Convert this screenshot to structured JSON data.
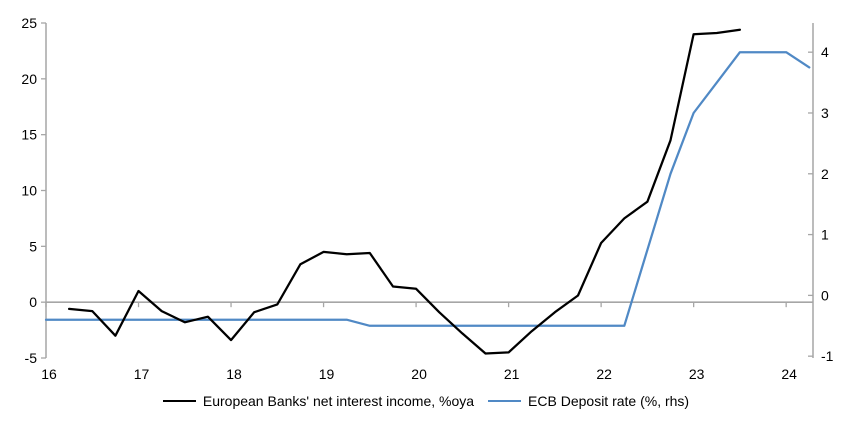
{
  "legend": {
    "items": [
      {
        "label": "European Banks' net interest income, %oya",
        "series": "nii"
      },
      {
        "label": "ECB Deposit rate (%, rhs)",
        "series": "ecb"
      }
    ]
  },
  "colors": {
    "nii": "#000000",
    "ecb": "#5089c5",
    "axis": "#a6a6a6",
    "zero_line": "#a6a6a6",
    "tick_text": "#000000"
  },
  "chart_data": {
    "type": "line",
    "title": "",
    "grid": "zero-line-only",
    "legend_position": "bottom",
    "x_axis": {
      "label": "",
      "ticks": [
        16,
        17,
        18,
        19,
        20,
        21,
        22,
        23,
        24
      ],
      "range": [
        16,
        24.29
      ],
      "tick_style": "on-zero-gridline"
    },
    "left_axis": {
      "label": "",
      "ticks": [
        25,
        20,
        15,
        10,
        5,
        0,
        -5
      ],
      "range": [
        -5,
        25
      ]
    },
    "right_axis": {
      "label": "",
      "ticks": [
        4,
        3,
        2,
        1,
        0,
        -1
      ],
      "range": [
        -1.03,
        4.48
      ]
    },
    "series": [
      {
        "name": "European Banks' net interest income, %oya",
        "axis": "left",
        "color": "#000000",
        "points": [
          [
            16.25,
            -0.6
          ],
          [
            16.5,
            -0.8
          ],
          [
            16.75,
            -3.0
          ],
          [
            17.0,
            1.0
          ],
          [
            17.25,
            -0.8
          ],
          [
            17.5,
            -1.8
          ],
          [
            17.75,
            -1.3
          ],
          [
            18.0,
            -3.4
          ],
          [
            18.25,
            -0.9
          ],
          [
            18.5,
            -0.2
          ],
          [
            18.75,
            3.4
          ],
          [
            19.0,
            4.5
          ],
          [
            19.25,
            4.3
          ],
          [
            19.5,
            4.4
          ],
          [
            19.75,
            1.4
          ],
          [
            20.0,
            1.2
          ],
          [
            20.25,
            -0.9
          ],
          [
            20.5,
            -2.8
          ],
          [
            20.75,
            -4.6
          ],
          [
            21.0,
            -4.5
          ],
          [
            21.25,
            -2.6
          ],
          [
            21.5,
            -0.9
          ],
          [
            21.75,
            0.6
          ],
          [
            22.0,
            5.3
          ],
          [
            22.25,
            7.5
          ],
          [
            22.5,
            9.0
          ],
          [
            22.75,
            14.5
          ],
          [
            23.0,
            24.0
          ],
          [
            23.25,
            24.1
          ],
          [
            23.5,
            24.4
          ]
        ]
      },
      {
        "name": "ECB Deposit rate (%, rhs)",
        "axis": "right",
        "color": "#5089c5",
        "points": [
          [
            16.0,
            -0.4
          ],
          [
            19.25,
            -0.4
          ],
          [
            19.5,
            -0.5
          ],
          [
            22.25,
            -0.5
          ],
          [
            22.5,
            0.75
          ],
          [
            22.75,
            2.0
          ],
          [
            23.0,
            3.0
          ],
          [
            23.25,
            3.5
          ],
          [
            23.5,
            4.0
          ],
          [
            23.75,
            4.0
          ],
          [
            24.0,
            4.0
          ],
          [
            24.25,
            3.75
          ]
        ]
      }
    ]
  }
}
